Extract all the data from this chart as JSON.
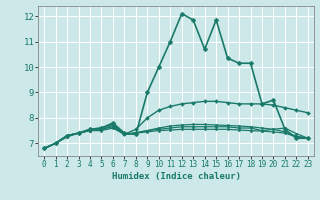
{
  "xlabel": "Humidex (Indice chaleur)",
  "bg_color": "#cce8e8",
  "grid_color": "#ffffff",
  "line_color": "#1a7a6a",
  "xlim": [
    -0.5,
    23.5
  ],
  "ylim": [
    6.5,
    12.4
  ],
  "xticks": [
    0,
    1,
    2,
    3,
    4,
    5,
    6,
    7,
    8,
    9,
    10,
    11,
    12,
    13,
    14,
    15,
    16,
    17,
    18,
    19,
    20,
    21,
    22,
    23
  ],
  "yticks": [
    7,
    8,
    9,
    10,
    11,
    12
  ],
  "lines": [
    {
      "x": [
        0,
        1,
        2,
        3,
        4,
        5,
        6,
        7,
        8,
        9,
        10,
        11,
        12,
        13,
        14,
        15,
        16,
        17,
        18,
        19,
        20,
        21,
        22,
        23
      ],
      "y": [
        6.8,
        7.0,
        7.3,
        7.4,
        7.55,
        7.6,
        7.8,
        7.4,
        7.35,
        9.0,
        10.0,
        11.0,
        12.1,
        11.85,
        10.7,
        11.85,
        10.35,
        10.15,
        10.15,
        8.55,
        8.7,
        7.55,
        7.2,
        7.2
      ],
      "lw": 1.2,
      "ms": 2.5
    },
    {
      "x": [
        0,
        1,
        2,
        3,
        4,
        5,
        6,
        7,
        8,
        9,
        10,
        11,
        12,
        13,
        14,
        15,
        16,
        17,
        18,
        19,
        20,
        21,
        22,
        23
      ],
      "y": [
        6.8,
        7.0,
        7.3,
        7.4,
        7.55,
        7.6,
        7.75,
        7.35,
        7.55,
        8.0,
        8.3,
        8.45,
        8.55,
        8.6,
        8.65,
        8.65,
        8.6,
        8.55,
        8.55,
        8.55,
        8.5,
        8.4,
        8.3,
        8.2
      ],
      "lw": 1.0,
      "ms": 2.0
    },
    {
      "x": [
        0,
        1,
        2,
        3,
        4,
        5,
        6,
        7,
        8,
        9,
        10,
        11,
        12,
        13,
        14,
        15,
        16,
        17,
        18,
        19,
        20,
        21,
        22,
        23
      ],
      "y": [
        6.8,
        7.0,
        7.3,
        7.4,
        7.5,
        7.5,
        7.6,
        7.35,
        7.4,
        7.45,
        7.5,
        7.52,
        7.55,
        7.55,
        7.55,
        7.55,
        7.55,
        7.52,
        7.5,
        7.48,
        7.45,
        7.4,
        7.25,
        7.2
      ],
      "lw": 0.9,
      "ms": 1.5
    },
    {
      "x": [
        0,
        1,
        2,
        3,
        4,
        5,
        6,
        7,
        8,
        9,
        10,
        11,
        12,
        13,
        14,
        15,
        16,
        17,
        18,
        19,
        20,
        21,
        22,
        23
      ],
      "y": [
        6.8,
        7.0,
        7.25,
        7.4,
        7.5,
        7.55,
        7.65,
        7.35,
        7.42,
        7.5,
        7.6,
        7.68,
        7.72,
        7.74,
        7.74,
        7.72,
        7.7,
        7.68,
        7.65,
        7.6,
        7.55,
        7.45,
        7.28,
        7.2
      ],
      "lw": 0.9,
      "ms": 1.5
    },
    {
      "x": [
        0,
        1,
        2,
        3,
        4,
        5,
        6,
        7,
        8,
        9,
        10,
        11,
        12,
        13,
        14,
        15,
        16,
        17,
        18,
        19,
        20,
        21,
        22,
        23
      ],
      "y": [
        6.8,
        7.0,
        7.3,
        7.4,
        7.5,
        7.55,
        7.7,
        7.35,
        7.4,
        7.5,
        7.55,
        7.6,
        7.65,
        7.65,
        7.65,
        7.65,
        7.65,
        7.6,
        7.6,
        7.5,
        7.55,
        7.6,
        7.38,
        7.2
      ],
      "lw": 0.9,
      "ms": 1.5
    }
  ]
}
